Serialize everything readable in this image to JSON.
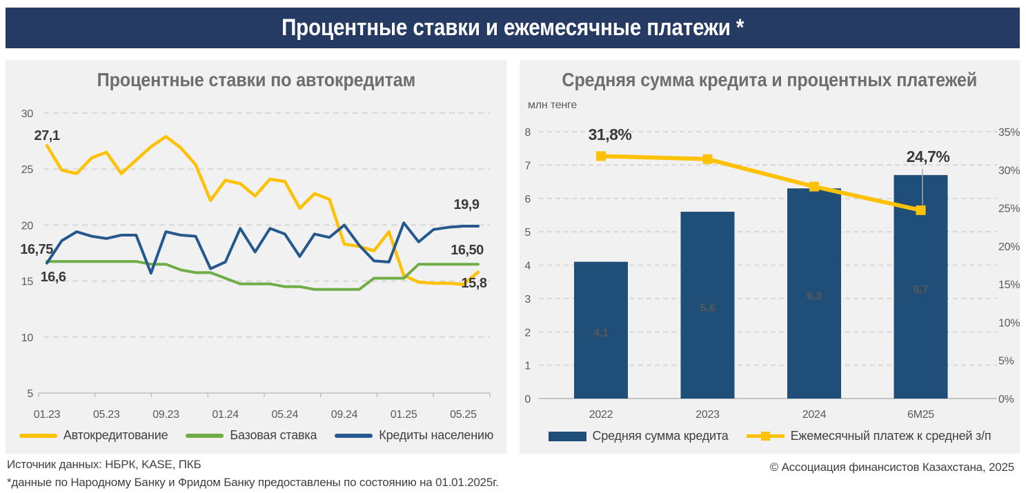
{
  "header": {
    "title": "Процентные ставки и ежемесячные платежи *"
  },
  "footer": {
    "source_line1": "Источник данных: НБРК, KASE, ПКБ",
    "source_line2": "*данные по Народному Банку и Фридом Банку предоставлены по состоянию на 01.01.2025г.",
    "copyright": "© Ассоциация финансистов Казахстана, 2025"
  },
  "colors": {
    "header_bg": "#253b63",
    "panel_bg": "#f1f1f2",
    "yellow": "#fdc106",
    "green": "#70ad47",
    "blue_line": "#25598d",
    "bar_blue": "#1f4e79",
    "grid": "#d7d7d7",
    "axis_text": "#595959",
    "label_text": "#3a3a3a"
  },
  "chart_data": [
    {
      "type": "line",
      "title": "Процентные ставки по автокредитам",
      "x": [
        "01.23",
        "02.23",
        "03.23",
        "04.23",
        "05.23",
        "06.23",
        "07.23",
        "08.23",
        "09.23",
        "10.23",
        "11.23",
        "12.23",
        "01.24",
        "02.24",
        "03.24",
        "04.24",
        "05.24",
        "06.24",
        "07.24",
        "08.24",
        "09.24",
        "10.24",
        "11.24",
        "12.24",
        "01.25",
        "02.25",
        "03.25",
        "04.25",
        "05.25",
        "06.25"
      ],
      "x_tick_labels": [
        "01.23",
        "05.23",
        "09.23",
        "01.24",
        "05.24",
        "09.24",
        "01.25",
        "05.25"
      ],
      "ylim": [
        5,
        30
      ],
      "yticks": [
        30,
        25,
        20,
        15,
        10,
        5
      ],
      "grid": "horizontal-dashed",
      "legend_position": "bottom",
      "series": [
        {
          "name": "Автокредитование",
          "color": "#fdc106",
          "values": [
            27.1,
            24.9,
            24.6,
            26.0,
            26.5,
            24.6,
            25.8,
            27.0,
            27.9,
            26.9,
            25.4,
            22.2,
            24.0,
            23.7,
            22.6,
            24.1,
            23.9,
            21.5,
            22.8,
            22.3,
            18.3,
            18.1,
            17.7,
            19.4,
            15.5,
            14.9,
            14.8,
            14.8,
            14.7,
            15.8
          ]
        },
        {
          "name": "Базовая ставка",
          "color": "#70ad47",
          "values": [
            16.75,
            16.75,
            16.75,
            16.75,
            16.75,
            16.75,
            16.75,
            16.5,
            16.5,
            16.0,
            15.75,
            15.75,
            15.25,
            14.75,
            14.75,
            14.75,
            14.5,
            14.5,
            14.25,
            14.25,
            14.25,
            14.25,
            15.25,
            15.25,
            15.25,
            16.5,
            16.5,
            16.5,
            16.5,
            16.5
          ]
        },
        {
          "name": "Кредиты населению",
          "color": "#25598d",
          "values": [
            16.6,
            18.6,
            19.4,
            19.0,
            18.8,
            19.1,
            19.1,
            15.7,
            19.4,
            19.1,
            19.0,
            16.1,
            16.7,
            19.7,
            17.6,
            19.7,
            19.2,
            17.2,
            19.2,
            18.9,
            20.0,
            18.2,
            16.8,
            16.7,
            20.2,
            18.5,
            19.6,
            19.8,
            19.9,
            19.9
          ]
        }
      ],
      "point_labels": {
        "auto_start": "27,1",
        "base_start": "16,75",
        "retail_start": "16,6",
        "retail_end": "19,9",
        "base_end": "16,50",
        "auto_end": "15,8"
      }
    },
    {
      "type": "bar+line",
      "title": "Средняя сумма кредита и процентных платежей",
      "y_axis_label": "млн тенге",
      "categories": [
        "2022",
        "2023",
        "2024",
        "6М25"
      ],
      "bars": {
        "name": "Средняя сумма кредита",
        "color": "#1f4e79",
        "values": [
          4.1,
          5.6,
          6.3,
          6.7
        ],
        "labels": [
          "4,1",
          "5,6",
          "6,3",
          "6,7"
        ]
      },
      "line": {
        "name": "Ежемесячный платеж к средней з/п",
        "color": "#fdc106",
        "values_pct": [
          31.8,
          31.4,
          27.8,
          24.7
        ],
        "start_label": "31,8%",
        "end_label": "24,7%"
      },
      "left_ylim": [
        0,
        8
      ],
      "left_yticks": [
        8,
        7,
        6,
        5,
        4,
        3,
        2,
        1,
        0
      ],
      "right_ylim": [
        0,
        35
      ],
      "right_ytick_labels": [
        "35%",
        "30%",
        "25%",
        "20%",
        "15%",
        "10%",
        "5%",
        "0%"
      ],
      "grid": "horizontal-dashed"
    }
  ]
}
